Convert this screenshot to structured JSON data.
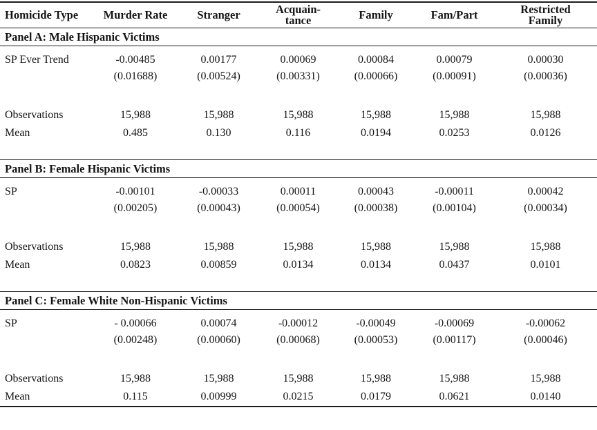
{
  "table": {
    "columns": [
      "Homicide Type",
      "Murder Rate",
      "Stranger",
      "Acquain-\ntance",
      "Family",
      "Fam/Part",
      "Restricted\nFamily"
    ],
    "panels": [
      {
        "title": "Panel A: Male Hispanic Victims",
        "rows": [
          {
            "name": "coefficient",
            "label": "SP Ever Trend",
            "values": [
              "-0.00485",
              "0.00177",
              "0.00069",
              "0.00084",
              "0.00079",
              "0.00030"
            ]
          },
          {
            "name": "std-error",
            "label": "",
            "values": [
              "(0.01688)",
              "(0.00524)",
              "(0.00331)",
              "(0.00066)",
              "(0.00091)",
              "(0.00036)"
            ]
          },
          {
            "name": "observations",
            "label": "Observations",
            "values": [
              "15,988",
              "15,988",
              "15,988",
              "15,988",
              "15,988",
              "15,988"
            ]
          },
          {
            "name": "mean",
            "label": "Mean",
            "values": [
              "0.485",
              "0.130",
              "0.116",
              "0.0194",
              "0.0253",
              "0.0126"
            ]
          }
        ]
      },
      {
        "title": "Panel B: Female Hispanic Victims",
        "rows": [
          {
            "name": "coefficient",
            "label": "SP",
            "values": [
              "-0.00101",
              "-0.00033",
              "0.00011",
              "0.00043",
              "-0.00011",
              "0.00042"
            ]
          },
          {
            "name": "std-error",
            "label": "",
            "values": [
              "(0.00205)",
              "(0.00043)",
              "(0.00054)",
              "(0.00038)",
              "(0.00104)",
              "(0.00034)"
            ]
          },
          {
            "name": "observations",
            "label": "Observations",
            "values": [
              "15,988",
              "15,988",
              "15,988",
              "15,988",
              "15,988",
              "15,988"
            ]
          },
          {
            "name": "mean",
            "label": "Mean",
            "values": [
              "0.0823",
              "0.00859",
              "0.0134",
              "0.0134",
              "0.0437",
              "0.0101"
            ]
          }
        ]
      },
      {
        "title": "Panel C: Female White Non-Hispanic Victims",
        "rows": [
          {
            "name": "coefficient",
            "label": "SP",
            "values": [
              "- 0.00066",
              "0.00074",
              "-0.00012",
              "-0.00049",
              "-0.00069",
              "-0.00062"
            ]
          },
          {
            "name": "std-error",
            "label": "",
            "values": [
              "(0.00248)",
              "(0.00060)",
              "(0.00068)",
              "(0.00053)",
              "(0.00117)",
              "(0.00046)"
            ]
          },
          {
            "name": "observations",
            "label": "Observations",
            "values": [
              "15,988",
              "15,988",
              "15,988",
              "15,988",
              "15,988",
              "15,988"
            ]
          },
          {
            "name": "mean",
            "label": "Mean",
            "values": [
              "0.115",
              "0.00999",
              "0.0215",
              "0.0179",
              "0.0621",
              "0.0140"
            ]
          }
        ]
      }
    ]
  }
}
